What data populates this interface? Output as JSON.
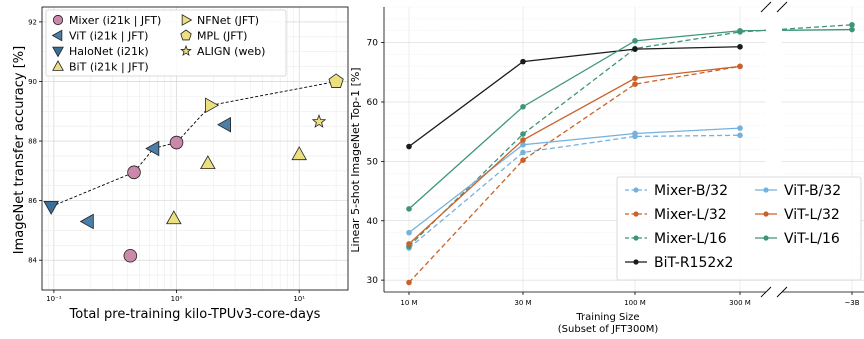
{
  "chart_data": [
    {
      "type": "scatter",
      "xlabel": "Total pre-training kilo-TPUv3-core-days",
      "ylabel": "ImageNet transfer accuracy [%]",
      "x_scale": "log",
      "xlim": [
        0.08,
        25
      ],
      "ylim": [
        83,
        92.5
      ],
      "x_ticks": [
        0.1,
        1,
        10
      ],
      "x_tick_labels": [
        "10⁻¹",
        "10⁰",
        "10¹"
      ],
      "y_ticks": [
        84,
        86,
        88,
        90,
        92
      ],
      "grid": true,
      "legend_position": "top-left",
      "series": [
        {
          "name": "Mixer (i21k | JFT)",
          "marker": "circle",
          "color": "#cc88aa",
          "points": [
            {
              "x": 0.42,
              "y": 84.15
            },
            {
              "x": 0.45,
              "y": 86.95
            },
            {
              "x": 1.0,
              "y": 87.95
            }
          ]
        },
        {
          "name": "ViT (i21k | JFT)",
          "marker": "triangle-left",
          "color": "#4c7fa8",
          "points": [
            {
              "x": 0.19,
              "y": 85.3
            },
            {
              "x": 0.65,
              "y": 87.75
            },
            {
              "x": 2.5,
              "y": 88.55
            }
          ]
        },
        {
          "name": "HaloNet (i21k)",
          "marker": "triangle-down",
          "color": "#3a6f9a",
          "points": [
            {
              "x": 0.095,
              "y": 85.8
            }
          ]
        },
        {
          "name": "BiT (i21k | JFT)",
          "marker": "triangle-up",
          "color": "#ecdf80",
          "points": [
            {
              "x": 0.95,
              "y": 85.4
            },
            {
              "x": 1.8,
              "y": 87.25
            },
            {
              "x": 10.0,
              "y": 87.55
            }
          ]
        },
        {
          "name": "NFNet (JFT)",
          "marker": "triangle-right",
          "color": "#ecdf80",
          "points": [
            {
              "x": 1.9,
              "y": 89.2
            }
          ]
        },
        {
          "name": "MPL (JFT)",
          "marker": "pentagon",
          "color": "#ecdf80",
          "points": [
            {
              "x": 20.0,
              "y": 90.0
            }
          ]
        },
        {
          "name": "ALIGN (web)",
          "marker": "star",
          "color": "#ecdf80",
          "points": [
            {
              "x": 14.5,
              "y": 88.65
            }
          ]
        }
      ],
      "frontier": [
        {
          "x": 0.095,
          "y": 85.8
        },
        {
          "x": 0.45,
          "y": 86.95
        },
        {
          "x": 0.65,
          "y": 87.75
        },
        {
          "x": 1.0,
          "y": 87.95
        },
        {
          "x": 1.9,
          "y": 89.2
        },
        {
          "x": 20.0,
          "y": 90.0
        }
      ]
    },
    {
      "type": "line",
      "title": "",
      "xlabel": "Training Size",
      "xlabel2": "(Subset of JFT300M)",
      "ylabel": "Linear 5-shot ImageNet Top-1 [%]",
      "x_scale": "log",
      "x_axis_break": true,
      "categories": [
        "10 M",
        "30 M",
        "100 M",
        "300 M",
        "~3B"
      ],
      "ylim": [
        28,
        76
      ],
      "y_ticks": [
        30,
        40,
        50,
        60,
        70
      ],
      "grid": true,
      "legend_position": "lower-right",
      "series": [
        {
          "name": "Mixer-B/32",
          "color": "#74b1de",
          "dashed": true,
          "values": [
            35.4,
            51.5,
            54.2,
            54.4,
            null
          ]
        },
        {
          "name": "Mixer-L/32",
          "color": "#c9622a",
          "dashed": true,
          "values": [
            29.6,
            50.2,
            63.0,
            66.0,
            null
          ]
        },
        {
          "name": "Mixer-L/16",
          "color": "#3f957a",
          "dashed": true,
          "values": [
            35.7,
            54.6,
            69.0,
            71.8,
            73.0
          ]
        },
        {
          "name": "BiT-R152x2",
          "color": "#1a1a1a",
          "dashed": false,
          "values": [
            52.5,
            66.8,
            68.9,
            69.3,
            null
          ]
        },
        {
          "name": "ViT-B/32",
          "color": "#74b1de",
          "dashed": false,
          "values": [
            38.0,
            52.8,
            54.7,
            55.6,
            null
          ]
        },
        {
          "name": "ViT-L/32",
          "color": "#c9622a",
          "dashed": false,
          "values": [
            36.1,
            53.6,
            64.0,
            66.0,
            null
          ]
        },
        {
          "name": "ViT-L/16",
          "color": "#3f957a",
          "dashed": false,
          "values": [
            42.0,
            59.2,
            70.3,
            72.0,
            72.2
          ]
        }
      ]
    }
  ]
}
